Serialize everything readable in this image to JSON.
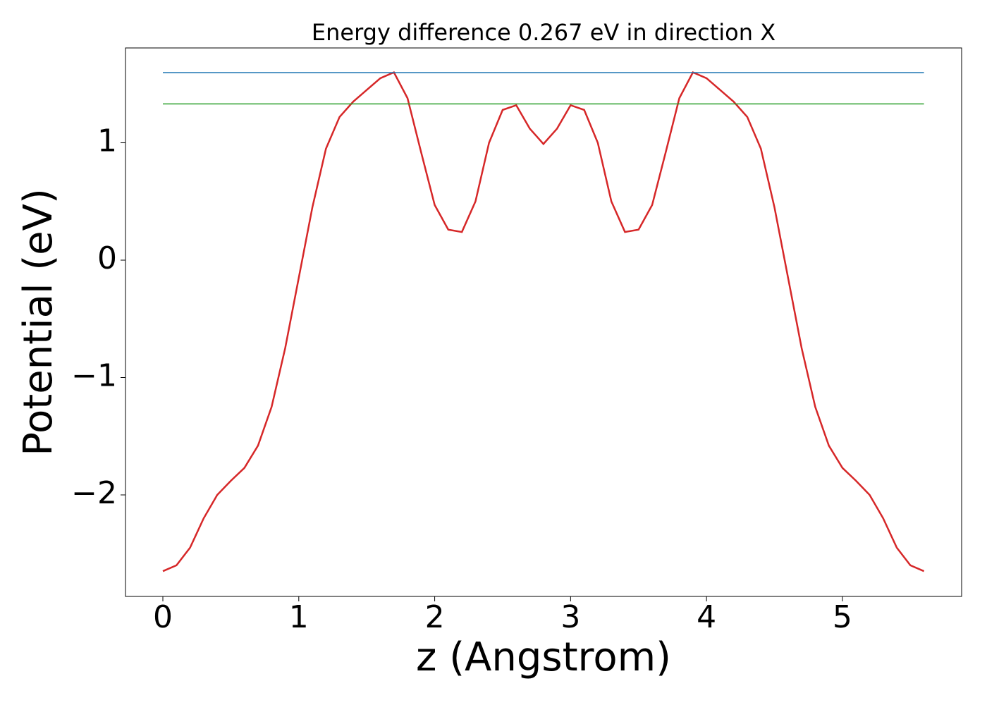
{
  "chart_data": {
    "type": "line",
    "title": "Energy difference 0.267 eV in direction X",
    "xlabel": "z (Angstrom)",
    "ylabel": "Potential (eV)",
    "xlim": [
      -0.275,
      5.877
    ],
    "ylim": [
      -2.865,
      1.808
    ],
    "xticks": [
      0,
      1,
      2,
      3,
      4,
      5
    ],
    "yticks": [
      {
        "value": -2,
        "label": "−2"
      },
      {
        "value": -1,
        "label": "−1"
      },
      0,
      1
    ],
    "series": [
      {
        "color": "#d62728",
        "x": [
          0,
          0.1,
          0.2,
          0.3,
          0.4,
          0.5,
          0.6,
          0.7,
          0.8,
          0.9,
          1.0,
          1.1,
          1.2,
          1.3,
          1.4,
          1.5,
          1.6,
          1.7,
          1.8,
          1.9,
          2.0,
          2.1,
          2.2,
          2.3,
          2.4,
          2.5,
          2.6,
          2.7,
          2.8,
          2.9,
          3.0,
          3.1,
          3.2,
          3.3,
          3.4,
          3.5,
          3.6,
          3.7,
          3.8,
          3.9,
          4.0,
          4.1,
          4.2,
          4.3,
          4.4,
          4.5,
          4.6,
          4.7,
          4.8,
          4.9,
          5.0,
          5.1,
          5.2,
          5.3,
          5.4,
          5.5,
          5.6
        ],
        "values": [
          -2.65,
          -2.6,
          -2.45,
          -2.2,
          -2.0,
          -1.88,
          -1.77,
          -1.58,
          -1.25,
          -0.75,
          -0.15,
          0.45,
          0.95,
          1.22,
          1.35,
          1.45,
          1.55,
          1.6,
          1.38,
          0.92,
          0.47,
          0.26,
          0.24,
          0.5,
          1.0,
          1.28,
          1.32,
          1.12,
          0.99,
          1.12,
          1.32,
          1.28,
          1.0,
          0.5,
          0.24,
          0.26,
          0.47,
          0.92,
          1.38,
          1.6,
          1.55,
          1.45,
          1.35,
          1.22,
          0.95,
          0.45,
          -0.15,
          -0.75,
          -1.25,
          -1.58,
          -1.77,
          -1.88,
          -2.0,
          -2.2,
          -2.45,
          -2.6,
          -2.65
        ]
      },
      {
        "color": "#1f77b4",
        "x": [
          0,
          5.6
        ],
        "values": [
          1.598,
          1.598
        ]
      },
      {
        "color": "#2ca02c",
        "x": [
          0,
          5.6
        ],
        "values": [
          1.331,
          1.331
        ]
      }
    ]
  }
}
